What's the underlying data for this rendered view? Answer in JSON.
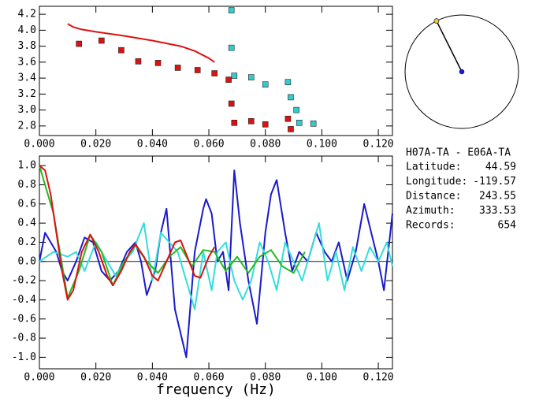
{
  "chart_data": [
    {
      "type": "line",
      "xlim": [
        0,
        0.125
      ],
      "ylim": [
        2.68,
        4.3
      ],
      "xticks": [
        {
          "value": 0,
          "label": "0.000"
        },
        {
          "value": 0.02,
          "label": "0.020"
        },
        {
          "value": 0.04,
          "label": "0.040"
        },
        {
          "value": 0.06,
          "label": "0.060"
        },
        {
          "value": 0.08,
          "label": "0.080"
        },
        {
          "value": 0.1,
          "label": "0.100"
        },
        {
          "value": 0.12,
          "label": "0.120"
        }
      ],
      "yticks": [
        {
          "value": 2.8,
          "label": "2.8"
        },
        {
          "value": 3.0,
          "label": "3.0"
        },
        {
          "value": 3.2,
          "label": "3.2"
        },
        {
          "value": 3.4,
          "label": "3.4"
        },
        {
          "value": 3.6,
          "label": "3.6"
        },
        {
          "value": 3.8,
          "label": "3.8"
        },
        {
          "value": 4.0,
          "label": "4.0"
        },
        {
          "value": 4.2,
          "label": "4.2"
        }
      ],
      "series": [
        {
          "style": "markers",
          "color": "#dd1111",
          "x": [
            0.014,
            0.022,
            0.029,
            0.035,
            0.042,
            0.049,
            0.056,
            0.062,
            0.067,
            0.068,
            0.069,
            0.075,
            0.08,
            0.088,
            0.089
          ],
          "values": [
            3.83,
            3.87,
            3.75,
            3.61,
            3.59,
            3.53,
            3.5,
            3.46,
            3.38,
            3.08,
            2.84,
            2.86,
            2.82,
            2.89,
            2.76
          ]
        },
        {
          "style": "markers",
          "color": "#33cccc",
          "x": [
            0.068,
            0.068,
            0.069,
            0.075,
            0.08,
            0.088,
            0.089,
            0.091,
            0.092,
            0.097
          ],
          "values": [
            4.25,
            3.78,
            3.43,
            3.41,
            3.32,
            3.35,
            3.16,
            3.0,
            2.84,
            2.83
          ]
        },
        {
          "style": "line",
          "color": "#dd1111",
          "x": [
            0.01,
            0.012,
            0.015,
            0.02,
            0.03,
            0.04,
            0.05,
            0.055,
            0.06,
            0.062
          ],
          "values": [
            4.08,
            4.04,
            4.01,
            3.98,
            3.93,
            3.87,
            3.8,
            3.74,
            3.65,
            3.6
          ]
        }
      ]
    },
    {
      "type": "line",
      "xlabel": "frequency (Hz)",
      "xlim": [
        0,
        0.125
      ],
      "ylim": [
        -1.12,
        1.1
      ],
      "hline": 0,
      "xticks": [
        {
          "value": 0,
          "label": "0.000"
        },
        {
          "value": 0.02,
          "label": "0.020"
        },
        {
          "value": 0.04,
          "label": "0.040"
        },
        {
          "value": 0.06,
          "label": "0.060"
        },
        {
          "value": 0.08,
          "label": "0.080"
        },
        {
          "value": 0.1,
          "label": "0.100"
        },
        {
          "value": 0.12,
          "label": "0.120"
        }
      ],
      "yticks": [
        {
          "value": 1.0,
          "label": "1.0"
        },
        {
          "value": 0.8,
          "label": "0.8"
        },
        {
          "value": 0.6,
          "label": "0.6"
        },
        {
          "value": 0.4,
          "label": "0.4"
        },
        {
          "value": 0.2,
          "label": "0.2"
        },
        {
          "value": 0.0,
          "label": "0.0"
        },
        {
          "value": -0.2,
          "label": "-0.2"
        },
        {
          "value": -0.4,
          "label": "-0.4"
        },
        {
          "value": -0.6,
          "label": "-0.6"
        },
        {
          "value": -0.8,
          "label": "-0.8"
        },
        {
          "value": -1.0,
          "label": "-1.0"
        }
      ],
      "series": [
        {
          "style": "line",
          "color": "#1a1acc",
          "x": [
            0,
            0.002,
            0.004,
            0.006,
            0.008,
            0.01,
            0.013,
            0.016,
            0.019,
            0.022,
            0.025,
            0.028,
            0.031,
            0.034,
            0.036,
            0.038,
            0.041,
            0.043,
            0.045,
            0.048,
            0.052,
            0.055,
            0.058,
            0.059,
            0.061,
            0.063,
            0.065,
            0.067,
            0.069,
            0.071,
            0.074,
            0.077,
            0.08,
            0.082,
            0.084,
            0.087,
            0.0895,
            0.092,
            0.095,
            0.098,
            0.101,
            0.1035,
            0.106,
            0.109,
            0.112,
            0.115,
            0.1175,
            0.12,
            0.122,
            0.125
          ],
          "values": [
            0.0,
            0.3,
            0.2,
            0.1,
            -0.1,
            -0.2,
            0.0,
            0.25,
            0.2,
            -0.1,
            -0.2,
            -0.1,
            0.1,
            0.2,
            0.0,
            -0.35,
            -0.1,
            0.3,
            0.55,
            -0.5,
            -1.0,
            0.1,
            0.55,
            0.65,
            0.5,
            0.0,
            0.1,
            -0.3,
            0.95,
            0.4,
            -0.2,
            -0.65,
            0.3,
            0.7,
            0.85,
            0.3,
            -0.1,
            0.1,
            0.0,
            0.3,
            0.1,
            0.0,
            0.2,
            -0.2,
            0.1,
            0.6,
            0.3,
            0.0,
            -0.3,
            0.5
          ]
        },
        {
          "style": "line",
          "color": "#33dddd",
          "x": [
            0,
            0.005,
            0.01,
            0.013,
            0.016,
            0.02,
            0.024,
            0.027,
            0.03,
            0.033,
            0.037,
            0.04,
            0.043,
            0.046,
            0.049,
            0.052,
            0.055,
            0.058,
            0.061,
            0.063,
            0.066,
            0.069,
            0.072,
            0.075,
            0.078,
            0.081,
            0.084,
            0.087,
            0.09,
            0.093,
            0.096,
            0.099,
            0.102,
            0.105,
            0.108,
            0.111,
            0.114,
            0.117,
            0.12,
            0.123,
            0.125
          ],
          "values": [
            0.0,
            0.1,
            0.05,
            0.1,
            -0.1,
            0.2,
            0.0,
            -0.15,
            0.0,
            0.1,
            0.4,
            -0.2,
            0.3,
            0.2,
            0.1,
            -0.2,
            -0.5,
            0.1,
            -0.3,
            0.1,
            0.2,
            -0.2,
            -0.4,
            -0.2,
            0.2,
            0.0,
            -0.3,
            0.2,
            0.0,
            -0.2,
            0.1,
            0.4,
            -0.2,
            0.1,
            -0.3,
            0.15,
            -0.1,
            0.15,
            0.0,
            0.2,
            -0.05
          ]
        },
        {
          "style": "line",
          "color": "#22bb22",
          "x": [
            0,
            0.005,
            0.01,
            0.014,
            0.018,
            0.022,
            0.026,
            0.03,
            0.034,
            0.038,
            0.042,
            0.046,
            0.05,
            0.054,
            0.058,
            0.062,
            0.066,
            0.07,
            0.074,
            0.078,
            0.082,
            0.086,
            0.09,
            0.094
          ],
          "values": [
            1.0,
            0.5,
            -0.38,
            -0.1,
            0.28,
            0.1,
            -0.25,
            0.0,
            0.17,
            0.0,
            -0.12,
            0.05,
            0.15,
            -0.05,
            0.12,
            0.1,
            -0.1,
            0.05,
            -0.12,
            0.05,
            0.12,
            -0.05,
            -0.12,
            0.1
          ]
        },
        {
          "style": "line",
          "color": "#dd1111",
          "x": [
            0,
            0.002,
            0.004,
            0.006,
            0.008,
            0.01,
            0.012,
            0.015,
            0.018,
            0.021,
            0.024,
            0.026,
            0.029,
            0.032,
            0.034,
            0.037,
            0.04,
            0.042,
            0.045,
            0.048,
            0.05,
            0.053,
            0.055,
            0.057,
            0.06,
            0.062
          ],
          "values": [
            1.0,
            0.95,
            0.7,
            0.3,
            -0.1,
            -0.4,
            -0.3,
            0.1,
            0.28,
            0.1,
            -0.15,
            -0.25,
            -0.1,
            0.1,
            0.18,
            0.05,
            -0.15,
            -0.2,
            0.0,
            0.2,
            0.22,
            0.0,
            -0.15,
            -0.17,
            0.05,
            0.15
          ]
        }
      ]
    }
  ],
  "station": {
    "title": "H07A-TA - E06A-TA",
    "fields": [
      {
        "label": "Latitude:",
        "value": 44.59
      },
      {
        "label": "Longitude:",
        "value": -119.57
      },
      {
        "label": "Distance:",
        "value": 243.55
      },
      {
        "label": "Azimuth:",
        "value": 333.53
      },
      {
        "label": "Records:",
        "value": 654
      }
    ]
  }
}
